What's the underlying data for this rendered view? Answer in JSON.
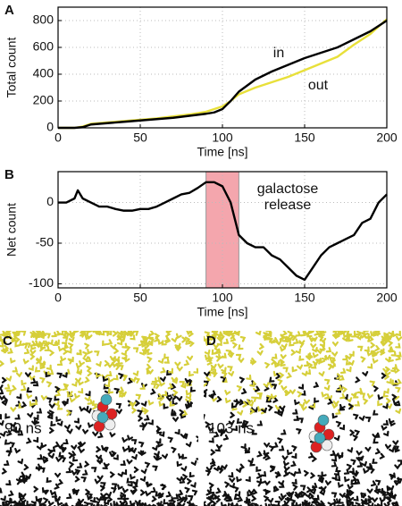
{
  "chart_data": [
    {
      "type": "line",
      "panel_label": "A",
      "xlabel": "Time [ns]",
      "ylabel": "Total count",
      "x": [
        0,
        10,
        15,
        20,
        30,
        40,
        50,
        60,
        70,
        80,
        90,
        95,
        100,
        105,
        110,
        120,
        130,
        140,
        150,
        160,
        170,
        180,
        190,
        200
      ],
      "series": [
        {
          "name": "in",
          "color": "#000000",
          "values": [
            0,
            0,
            5,
            25,
            35,
            45,
            55,
            65,
            75,
            90,
            105,
            115,
            140,
            200,
            270,
            360,
            420,
            470,
            520,
            560,
            600,
            660,
            720,
            800
          ]
        },
        {
          "name": "out",
          "color": "#e8e03a",
          "values": [
            0,
            0,
            10,
            30,
            40,
            50,
            60,
            70,
            85,
            100,
            120,
            140,
            160,
            200,
            250,
            300,
            340,
            380,
            430,
            480,
            530,
            620,
            700,
            810
          ]
        }
      ],
      "annotations": [
        [
          "in"
        ],
        [
          "out"
        ]
      ],
      "xlim": [
        0,
        200
      ],
      "xticks": [
        0,
        50,
        100,
        150,
        200
      ],
      "ylim": [
        0,
        900
      ],
      "yticks": [
        0,
        200,
        400,
        600,
        800
      ],
      "grid": true
    },
    {
      "type": "line",
      "panel_label": "B",
      "xlabel": "Time [ns]",
      "ylabel": "Net count",
      "x": [
        0,
        5,
        10,
        12,
        15,
        20,
        25,
        30,
        35,
        40,
        45,
        50,
        55,
        60,
        65,
        70,
        75,
        80,
        85,
        90,
        95,
        100,
        105,
        110,
        115,
        120,
        125,
        130,
        135,
        140,
        145,
        150,
        155,
        160,
        165,
        170,
        175,
        180,
        185,
        190,
        195,
        200
      ],
      "series": [
        {
          "name": "net",
          "color": "#000000",
          "values": [
            0,
            0,
            5,
            15,
            5,
            0,
            -5,
            -5,
            -8,
            -10,
            -10,
            -8,
            -8,
            -5,
            0,
            5,
            10,
            12,
            18,
            25,
            25,
            20,
            0,
            -40,
            -50,
            -55,
            -55,
            -65,
            -70,
            -80,
            -90,
            -95,
            -80,
            -65,
            -55,
            -50,
            -45,
            -40,
            -25,
            -20,
            0,
            10
          ]
        }
      ],
      "shaded_region": [
        90,
        110
      ],
      "annotations": [
        [
          "galactose",
          "release"
        ]
      ],
      "xlim": [
        0,
        200
      ],
      "xticks": [
        0,
        50,
        100,
        150,
        200
      ],
      "ylim": [
        -105,
        38
      ],
      "yticks": [
        -100,
        -50,
        0
      ],
      "grid": true
    }
  ],
  "panels": [
    {
      "letter": "C",
      "label": "90 ns"
    },
    {
      "letter": "D",
      "label": "103 ns"
    }
  ]
}
